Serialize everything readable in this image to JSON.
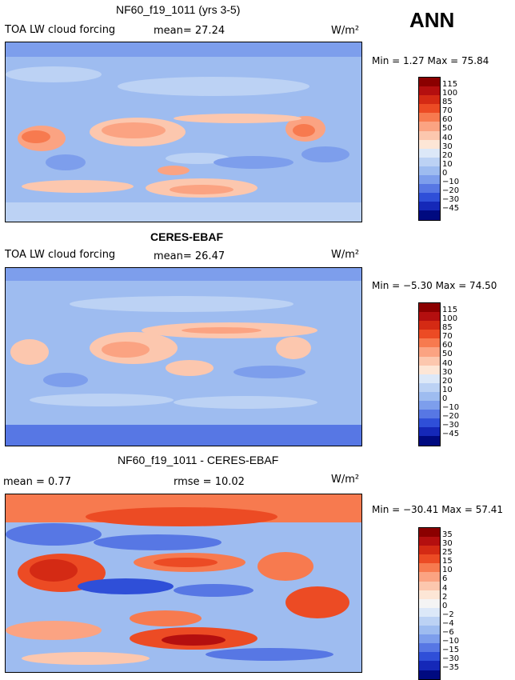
{
  "season": "ANN",
  "units": "W/m²",
  "panels": [
    {
      "title": "NF60_f19_1011 (yrs 3-5)",
      "variable": "TOA LW cloud forcing",
      "stat_text": "mean=  27.24",
      "minmax": "Min =    1.27  Max =  75.84"
    },
    {
      "title": "CERES-EBAF",
      "variable": "TOA LW cloud forcing",
      "stat_text": "mean=  26.47",
      "minmax": "Min =  −5.30  Max =  74.50"
    },
    {
      "title": "NF60_f19_1011 - CERES-EBAF",
      "mean_text": "mean =   0.77",
      "rmse_text": "rmse =   10.02",
      "minmax": "Min = −30.41  Max =  57.41"
    }
  ],
  "colorbars": {
    "absolute": {
      "labels": [
        "115",
        "100",
        "85",
        "70",
        "60",
        "50",
        "40",
        "30",
        "20",
        "10",
        "0",
        "−10",
        "−20",
        "−30",
        "−45"
      ],
      "colors": [
        "#8b0000",
        "#b40f0f",
        "#d42a14",
        "#ec4b24",
        "#f77a4f",
        "#fba382",
        "#fcc7ae",
        "#fde6d6",
        "#dce8f8",
        "#bcd2f4",
        "#9ebcf0",
        "#7d9eec",
        "#5777e4",
        "#2f4fd8",
        "#1528b8",
        "#000a80"
      ]
    },
    "difference": {
      "labels": [
        "35",
        "30",
        "25",
        "15",
        "10",
        "6",
        "4",
        "2",
        "0",
        "−2",
        "−4",
        "−6",
        "−10",
        "−15",
        "−30",
        "−35"
      ],
      "colors": [
        "#8b0000",
        "#b40f0f",
        "#d42a14",
        "#ec4b24",
        "#f77a4f",
        "#fba382",
        "#fcc7ae",
        "#fde6d6",
        "#f4f4f4",
        "#dce8f8",
        "#bcd2f4",
        "#9ebcf0",
        "#7d9eec",
        "#5777e4",
        "#2f4fd8",
        "#1528b8",
        "#000a80"
      ]
    }
  }
}
